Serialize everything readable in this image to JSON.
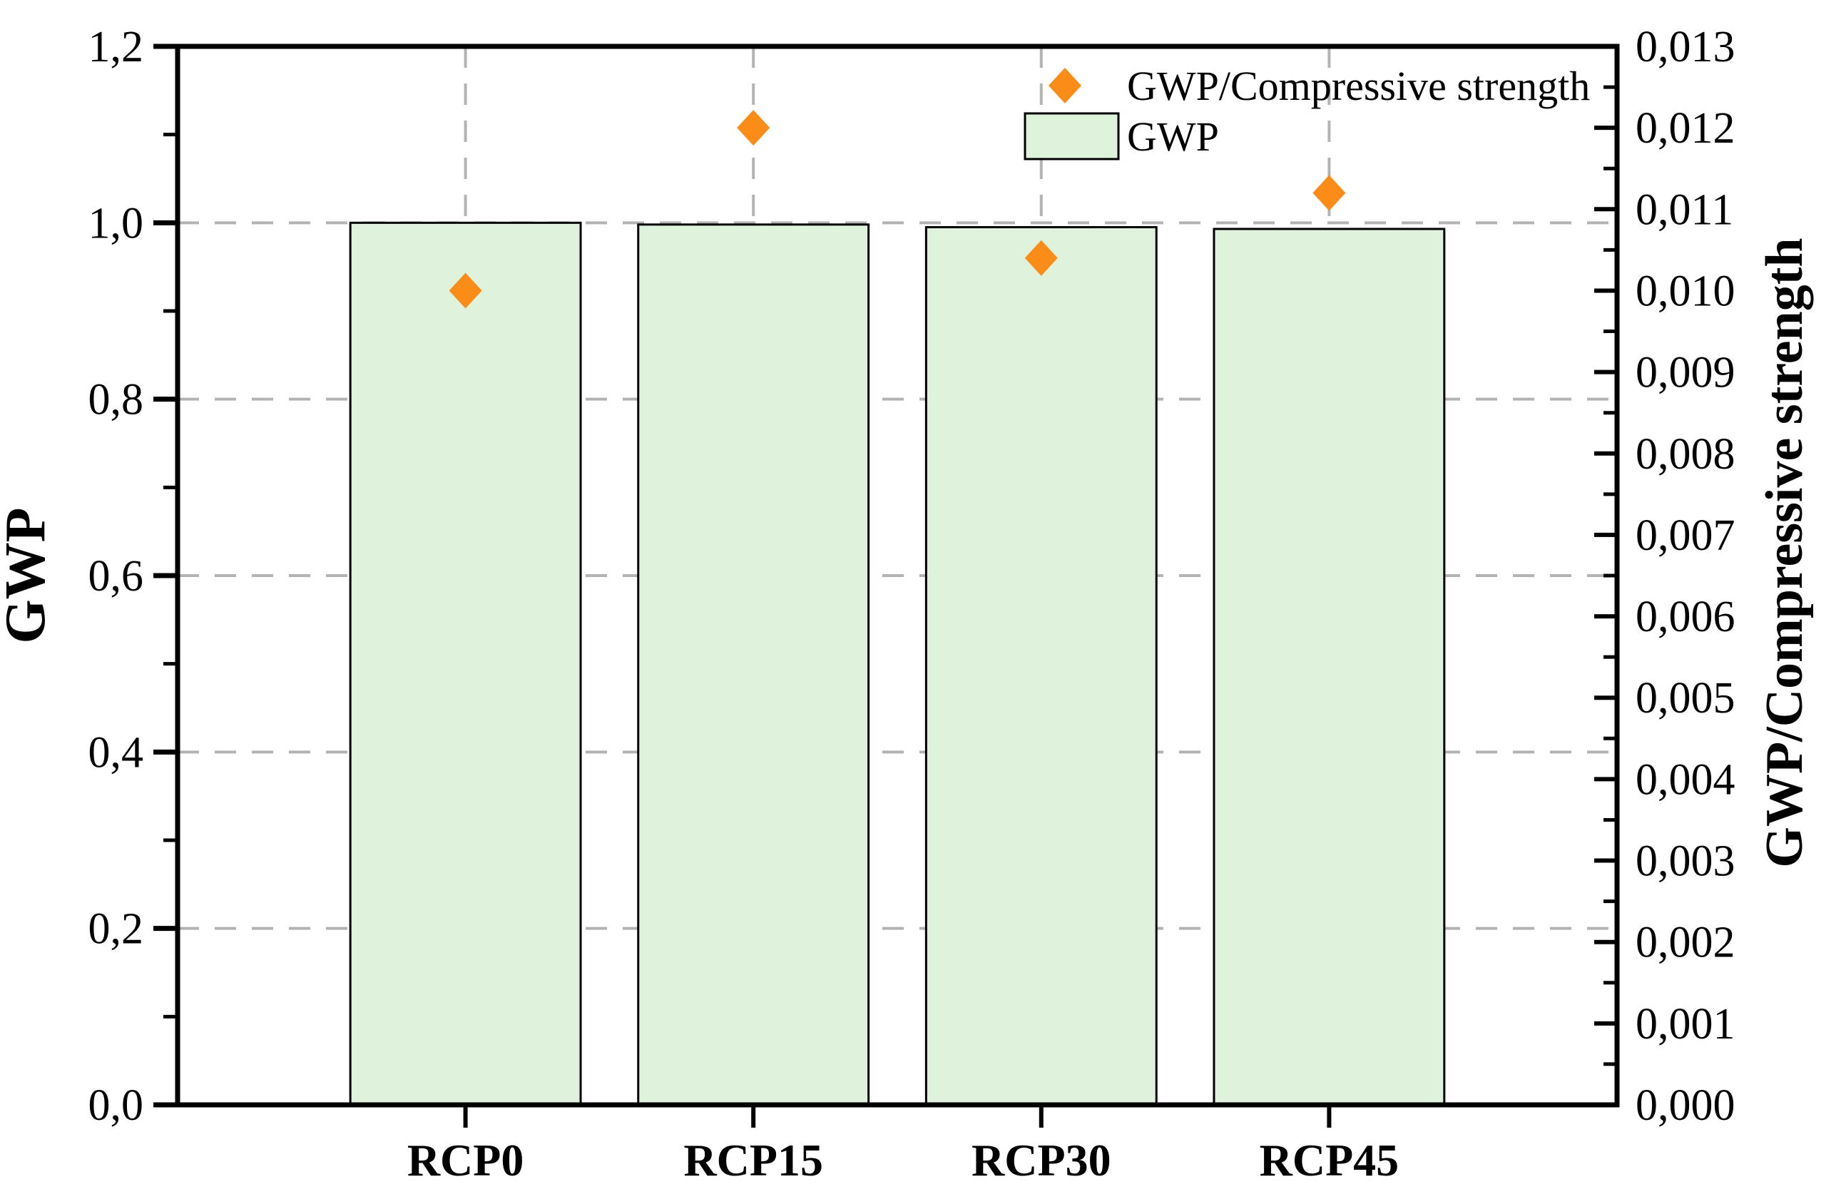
{
  "chart_data": {
    "type": "bar",
    "subtype": "bar-with-scatter-overlay",
    "categories": [
      "RCP0",
      "RCP15",
      "RCP30",
      "RCP45"
    ],
    "series": [
      {
        "name": "GWP",
        "type": "bar",
        "axis": "left",
        "values": [
          1.0,
          0.998,
          0.995,
          0.993
        ]
      },
      {
        "name": "GWP/Compressive strength",
        "type": "scatter",
        "marker": "diamond",
        "axis": "right",
        "values": [
          0.01,
          0.012,
          0.0104,
          0.0112
        ]
      }
    ],
    "left_axis": {
      "label": "GWP",
      "min": 0.0,
      "max": 1.2,
      "major_step": 0.2,
      "minor_step": 0.1,
      "tick_labels": [
        "0,0",
        "0,2",
        "0,4",
        "0,6",
        "0,8",
        "1,0",
        "1,2"
      ]
    },
    "right_axis": {
      "label": "GWP/Compressive strength",
      "min": 0.0,
      "max": 0.013,
      "major_step": 0.001,
      "minor_step": 0.0005,
      "tick_labels": [
        "0,000",
        "0,001",
        "0,002",
        "0,003",
        "0,004",
        "0,005",
        "0,006",
        "0,007",
        "0,008",
        "0,009",
        "0,010",
        "0,011",
        "0,012",
        "0,013"
      ]
    },
    "x_axis": {
      "tick_labels": [
        "RCP0",
        "RCP15",
        "RCP30",
        "RCP45"
      ]
    },
    "legend": {
      "position": "top-right-inside",
      "items": [
        {
          "label": "GWP/Compressive strength",
          "marker": "diamond"
        },
        {
          "label": "GWP",
          "marker": "square"
        }
      ]
    },
    "grid": {
      "horizontal": true,
      "vertical": true,
      "style": "dashed"
    },
    "colors": {
      "bar_fill": "#DFF2DC",
      "bar_edge": "#000000",
      "marker": "#FA8C17",
      "gridline": "#B3B3B3",
      "axis": "#000000",
      "background": "#FFFFFF",
      "text": "#000000"
    }
  }
}
